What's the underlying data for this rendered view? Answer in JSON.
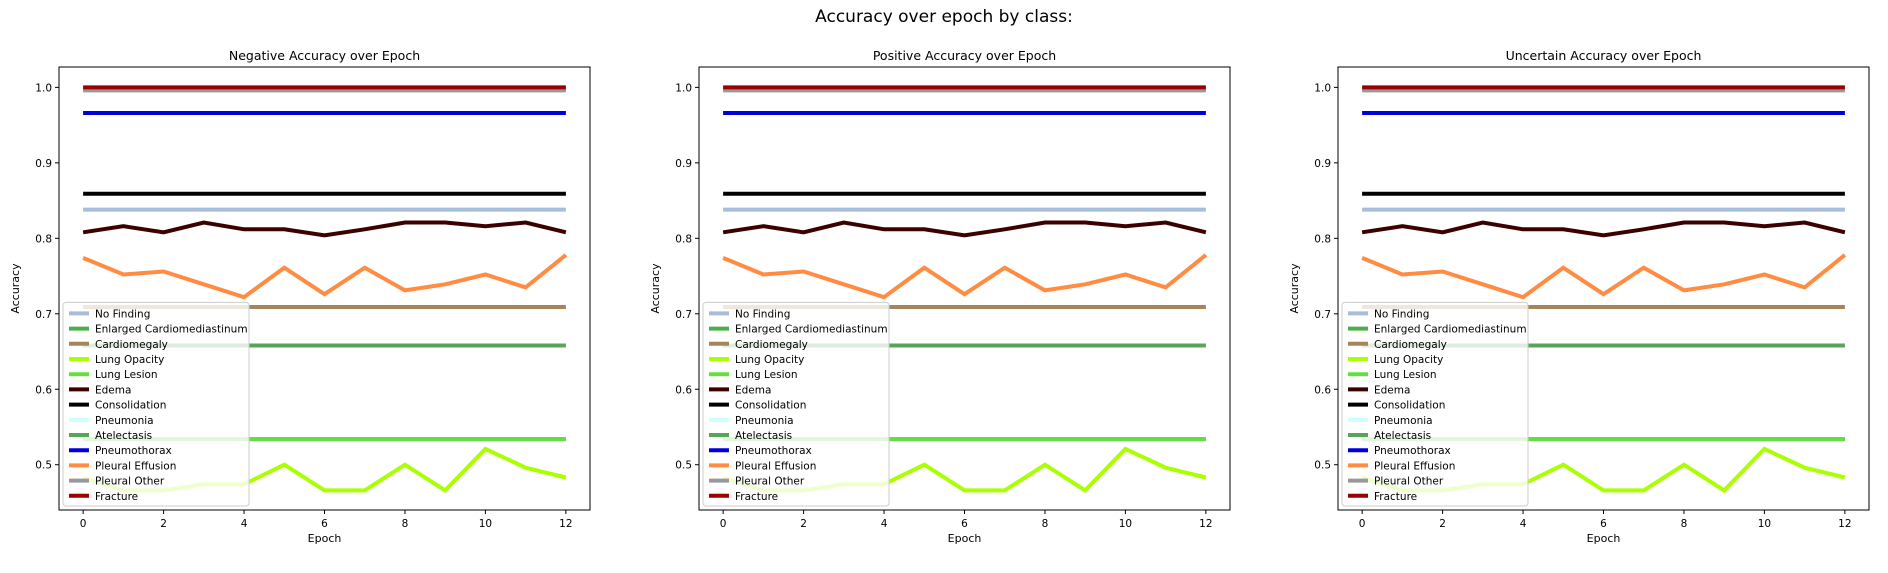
{
  "figure": {
    "suptitle": "Accuracy over epoch by class:"
  },
  "chart_data": [
    {
      "type": "line",
      "title": "Negative Accuracy over Epoch",
      "xlabel": "Epoch",
      "ylabel": "Accuracy",
      "xlim": [
        -0.6,
        12.6
      ],
      "ylim": [
        0.44,
        1.027
      ],
      "xticks": [
        0,
        2,
        4,
        6,
        8,
        10,
        12
      ],
      "yticks": [
        0.5,
        0.6,
        0.7,
        0.8,
        0.9,
        1.0
      ],
      "grid": false,
      "legend_position": "lower-left",
      "x": [
        0,
        1,
        2,
        3,
        4,
        5,
        6,
        7,
        8,
        9,
        10,
        11,
        12
      ],
      "series": [
        {
          "name": "No Finding",
          "color": "#a6bddb",
          "values": [
            0.838,
            0.838,
            0.838,
            0.838,
            0.838,
            0.838,
            0.838,
            0.838,
            0.838,
            0.838,
            0.838,
            0.838,
            0.838
          ]
        },
        {
          "name": "Enlarged Cardiomediastinum",
          "color": "#4daf4a",
          "values": [
            0.534,
            0.534,
            0.534,
            0.534,
            0.534,
            0.534,
            0.534,
            0.534,
            0.534,
            0.534,
            0.534,
            0.534,
            0.534
          ]
        },
        {
          "name": "Cardiomegaly",
          "color": "#a6855a",
          "values": [
            0.709,
            0.709,
            0.709,
            0.709,
            0.709,
            0.709,
            0.709,
            0.709,
            0.709,
            0.709,
            0.709,
            0.709,
            0.709
          ]
        },
        {
          "name": "Lung Opacity",
          "color": "#aaff00",
          "values": [
            0.483,
            0.466,
            0.466,
            0.474,
            0.474,
            0.5,
            0.466,
            0.466,
            0.5,
            0.466,
            0.521,
            0.496,
            0.483
          ]
        },
        {
          "name": "Lung Lesion",
          "color": "#66dd44",
          "values": [
            0.534,
            0.534,
            0.534,
            0.534,
            0.534,
            0.534,
            0.534,
            0.534,
            0.534,
            0.534,
            0.534,
            0.534,
            0.534
          ]
        },
        {
          "name": "Edema",
          "color": "#3d0000",
          "values": [
            0.808,
            0.816,
            0.808,
            0.821,
            0.812,
            0.812,
            0.804,
            0.812,
            0.821,
            0.821,
            0.816,
            0.821,
            0.808
          ]
        },
        {
          "name": "Consolidation",
          "color": "#000000",
          "values": [
            0.859,
            0.859,
            0.859,
            0.859,
            0.859,
            0.859,
            0.859,
            0.859,
            0.859,
            0.859,
            0.859,
            0.859,
            0.859
          ]
        },
        {
          "name": "Pneumonia",
          "color": "#ccffff",
          "values": [
            0.996,
            0.996,
            0.996,
            0.996,
            0.996,
            0.996,
            0.996,
            0.996,
            0.996,
            0.996,
            0.996,
            0.996,
            0.996
          ]
        },
        {
          "name": "Atelectasis",
          "color": "#5aa35a",
          "values": [
            0.658,
            0.658,
            0.658,
            0.658,
            0.658,
            0.658,
            0.658,
            0.658,
            0.658,
            0.658,
            0.658,
            0.658,
            0.658
          ]
        },
        {
          "name": "Pneumothorax",
          "color": "#0000dd",
          "values": [
            0.966,
            0.966,
            0.966,
            0.966,
            0.966,
            0.966,
            0.966,
            0.966,
            0.966,
            0.966,
            0.966,
            0.966,
            0.966
          ]
        },
        {
          "name": "Pleural Effusion",
          "color": "#ff8c42",
          "values": [
            0.774,
            0.752,
            0.756,
            0.739,
            0.722,
            0.761,
            0.726,
            0.761,
            0.731,
            0.739,
            0.752,
            0.735,
            0.778
          ]
        },
        {
          "name": "Pleural Other",
          "color": "#999999",
          "values": [
            0.996,
            0.996,
            0.996,
            0.996,
            0.996,
            0.996,
            0.996,
            0.996,
            0.996,
            0.996,
            0.996,
            0.996,
            0.996
          ]
        },
        {
          "name": "Fracture",
          "color": "#990000",
          "values": [
            1.0,
            1.0,
            1.0,
            1.0,
            1.0,
            1.0,
            1.0,
            1.0,
            1.0,
            1.0,
            1.0,
            1.0,
            1.0
          ]
        }
      ]
    },
    {
      "type": "line",
      "title": "Positive Accuracy over Epoch",
      "xlabel": "Epoch",
      "ylabel": "Accuracy",
      "xlim": [
        -0.6,
        12.6
      ],
      "ylim": [
        0.44,
        1.027
      ],
      "xticks": [
        0,
        2,
        4,
        6,
        8,
        10,
        12
      ],
      "yticks": [
        0.5,
        0.6,
        0.7,
        0.8,
        0.9,
        1.0
      ],
      "grid": false,
      "legend_position": "lower-left",
      "x": [
        0,
        1,
        2,
        3,
        4,
        5,
        6,
        7,
        8,
        9,
        10,
        11,
        12
      ],
      "series": [
        {
          "name": "No Finding",
          "color": "#a6bddb",
          "values": [
            0.838,
            0.838,
            0.838,
            0.838,
            0.838,
            0.838,
            0.838,
            0.838,
            0.838,
            0.838,
            0.838,
            0.838,
            0.838
          ]
        },
        {
          "name": "Enlarged Cardiomediastinum",
          "color": "#4daf4a",
          "values": [
            0.534,
            0.534,
            0.534,
            0.534,
            0.534,
            0.534,
            0.534,
            0.534,
            0.534,
            0.534,
            0.534,
            0.534,
            0.534
          ]
        },
        {
          "name": "Cardiomegaly",
          "color": "#a6855a",
          "values": [
            0.709,
            0.709,
            0.709,
            0.709,
            0.709,
            0.709,
            0.709,
            0.709,
            0.709,
            0.709,
            0.709,
            0.709,
            0.709
          ]
        },
        {
          "name": "Lung Opacity",
          "color": "#aaff00",
          "values": [
            0.483,
            0.466,
            0.466,
            0.474,
            0.474,
            0.5,
            0.466,
            0.466,
            0.5,
            0.466,
            0.521,
            0.496,
            0.483
          ]
        },
        {
          "name": "Lung Lesion",
          "color": "#66dd44",
          "values": [
            0.534,
            0.534,
            0.534,
            0.534,
            0.534,
            0.534,
            0.534,
            0.534,
            0.534,
            0.534,
            0.534,
            0.534,
            0.534
          ]
        },
        {
          "name": "Edema",
          "color": "#3d0000",
          "values": [
            0.808,
            0.816,
            0.808,
            0.821,
            0.812,
            0.812,
            0.804,
            0.812,
            0.821,
            0.821,
            0.816,
            0.821,
            0.808
          ]
        },
        {
          "name": "Consolidation",
          "color": "#000000",
          "values": [
            0.859,
            0.859,
            0.859,
            0.859,
            0.859,
            0.859,
            0.859,
            0.859,
            0.859,
            0.859,
            0.859,
            0.859,
            0.859
          ]
        },
        {
          "name": "Pneumonia",
          "color": "#ccffff",
          "values": [
            0.996,
            0.996,
            0.996,
            0.996,
            0.996,
            0.996,
            0.996,
            0.996,
            0.996,
            0.996,
            0.996,
            0.996,
            0.996
          ]
        },
        {
          "name": "Atelectasis",
          "color": "#5aa35a",
          "values": [
            0.658,
            0.658,
            0.658,
            0.658,
            0.658,
            0.658,
            0.658,
            0.658,
            0.658,
            0.658,
            0.658,
            0.658,
            0.658
          ]
        },
        {
          "name": "Pneumothorax",
          "color": "#0000dd",
          "values": [
            0.966,
            0.966,
            0.966,
            0.966,
            0.966,
            0.966,
            0.966,
            0.966,
            0.966,
            0.966,
            0.966,
            0.966,
            0.966
          ]
        },
        {
          "name": "Pleural Effusion",
          "color": "#ff8c42",
          "values": [
            0.774,
            0.752,
            0.756,
            0.739,
            0.722,
            0.761,
            0.726,
            0.761,
            0.731,
            0.739,
            0.752,
            0.735,
            0.778
          ]
        },
        {
          "name": "Pleural Other",
          "color": "#999999",
          "values": [
            0.996,
            0.996,
            0.996,
            0.996,
            0.996,
            0.996,
            0.996,
            0.996,
            0.996,
            0.996,
            0.996,
            0.996,
            0.996
          ]
        },
        {
          "name": "Fracture",
          "color": "#990000",
          "values": [
            1.0,
            1.0,
            1.0,
            1.0,
            1.0,
            1.0,
            1.0,
            1.0,
            1.0,
            1.0,
            1.0,
            1.0,
            1.0
          ]
        }
      ]
    },
    {
      "type": "line",
      "title": "Uncertain Accuracy over Epoch",
      "xlabel": "Epoch",
      "ylabel": "Accuracy",
      "xlim": [
        -0.6,
        12.6
      ],
      "ylim": [
        0.44,
        1.027
      ],
      "xticks": [
        0,
        2,
        4,
        6,
        8,
        10,
        12
      ],
      "yticks": [
        0.5,
        0.6,
        0.7,
        0.8,
        0.9,
        1.0
      ],
      "grid": false,
      "legend_position": "lower-left",
      "x": [
        0,
        1,
        2,
        3,
        4,
        5,
        6,
        7,
        8,
        9,
        10,
        11,
        12
      ],
      "series": [
        {
          "name": "No Finding",
          "color": "#a6bddb",
          "values": [
            0.838,
            0.838,
            0.838,
            0.838,
            0.838,
            0.838,
            0.838,
            0.838,
            0.838,
            0.838,
            0.838,
            0.838,
            0.838
          ]
        },
        {
          "name": "Enlarged Cardiomediastinum",
          "color": "#4daf4a",
          "values": [
            0.534,
            0.534,
            0.534,
            0.534,
            0.534,
            0.534,
            0.534,
            0.534,
            0.534,
            0.534,
            0.534,
            0.534,
            0.534
          ]
        },
        {
          "name": "Cardiomegaly",
          "color": "#a6855a",
          "values": [
            0.709,
            0.709,
            0.709,
            0.709,
            0.709,
            0.709,
            0.709,
            0.709,
            0.709,
            0.709,
            0.709,
            0.709,
            0.709
          ]
        },
        {
          "name": "Lung Opacity",
          "color": "#aaff00",
          "values": [
            0.483,
            0.466,
            0.466,
            0.474,
            0.474,
            0.5,
            0.466,
            0.466,
            0.5,
            0.466,
            0.521,
            0.496,
            0.483
          ]
        },
        {
          "name": "Lung Lesion",
          "color": "#66dd44",
          "values": [
            0.534,
            0.534,
            0.534,
            0.534,
            0.534,
            0.534,
            0.534,
            0.534,
            0.534,
            0.534,
            0.534,
            0.534,
            0.534
          ]
        },
        {
          "name": "Edema",
          "color": "#3d0000",
          "values": [
            0.808,
            0.816,
            0.808,
            0.821,
            0.812,
            0.812,
            0.804,
            0.812,
            0.821,
            0.821,
            0.816,
            0.821,
            0.808
          ]
        },
        {
          "name": "Consolidation",
          "color": "#000000",
          "values": [
            0.859,
            0.859,
            0.859,
            0.859,
            0.859,
            0.859,
            0.859,
            0.859,
            0.859,
            0.859,
            0.859,
            0.859,
            0.859
          ]
        },
        {
          "name": "Pneumonia",
          "color": "#ccffff",
          "values": [
            0.996,
            0.996,
            0.996,
            0.996,
            0.996,
            0.996,
            0.996,
            0.996,
            0.996,
            0.996,
            0.996,
            0.996,
            0.996
          ]
        },
        {
          "name": "Atelectasis",
          "color": "#5aa35a",
          "values": [
            0.658,
            0.658,
            0.658,
            0.658,
            0.658,
            0.658,
            0.658,
            0.658,
            0.658,
            0.658,
            0.658,
            0.658,
            0.658
          ]
        },
        {
          "name": "Pneumothorax",
          "color": "#0000dd",
          "values": [
            0.966,
            0.966,
            0.966,
            0.966,
            0.966,
            0.966,
            0.966,
            0.966,
            0.966,
            0.966,
            0.966,
            0.966,
            0.966
          ]
        },
        {
          "name": "Pleural Effusion",
          "color": "#ff8c42",
          "values": [
            0.774,
            0.752,
            0.756,
            0.739,
            0.722,
            0.761,
            0.726,
            0.761,
            0.731,
            0.739,
            0.752,
            0.735,
            0.778
          ]
        },
        {
          "name": "Pleural Other",
          "color": "#999999",
          "values": [
            0.996,
            0.996,
            0.996,
            0.996,
            0.996,
            0.996,
            0.996,
            0.996,
            0.996,
            0.996,
            0.996,
            0.996,
            0.996
          ]
        },
        {
          "name": "Fracture",
          "color": "#990000",
          "values": [
            1.0,
            1.0,
            1.0,
            1.0,
            1.0,
            1.0,
            1.0,
            1.0,
            1.0,
            1.0,
            1.0,
            1.0,
            1.0
          ]
        }
      ]
    }
  ]
}
